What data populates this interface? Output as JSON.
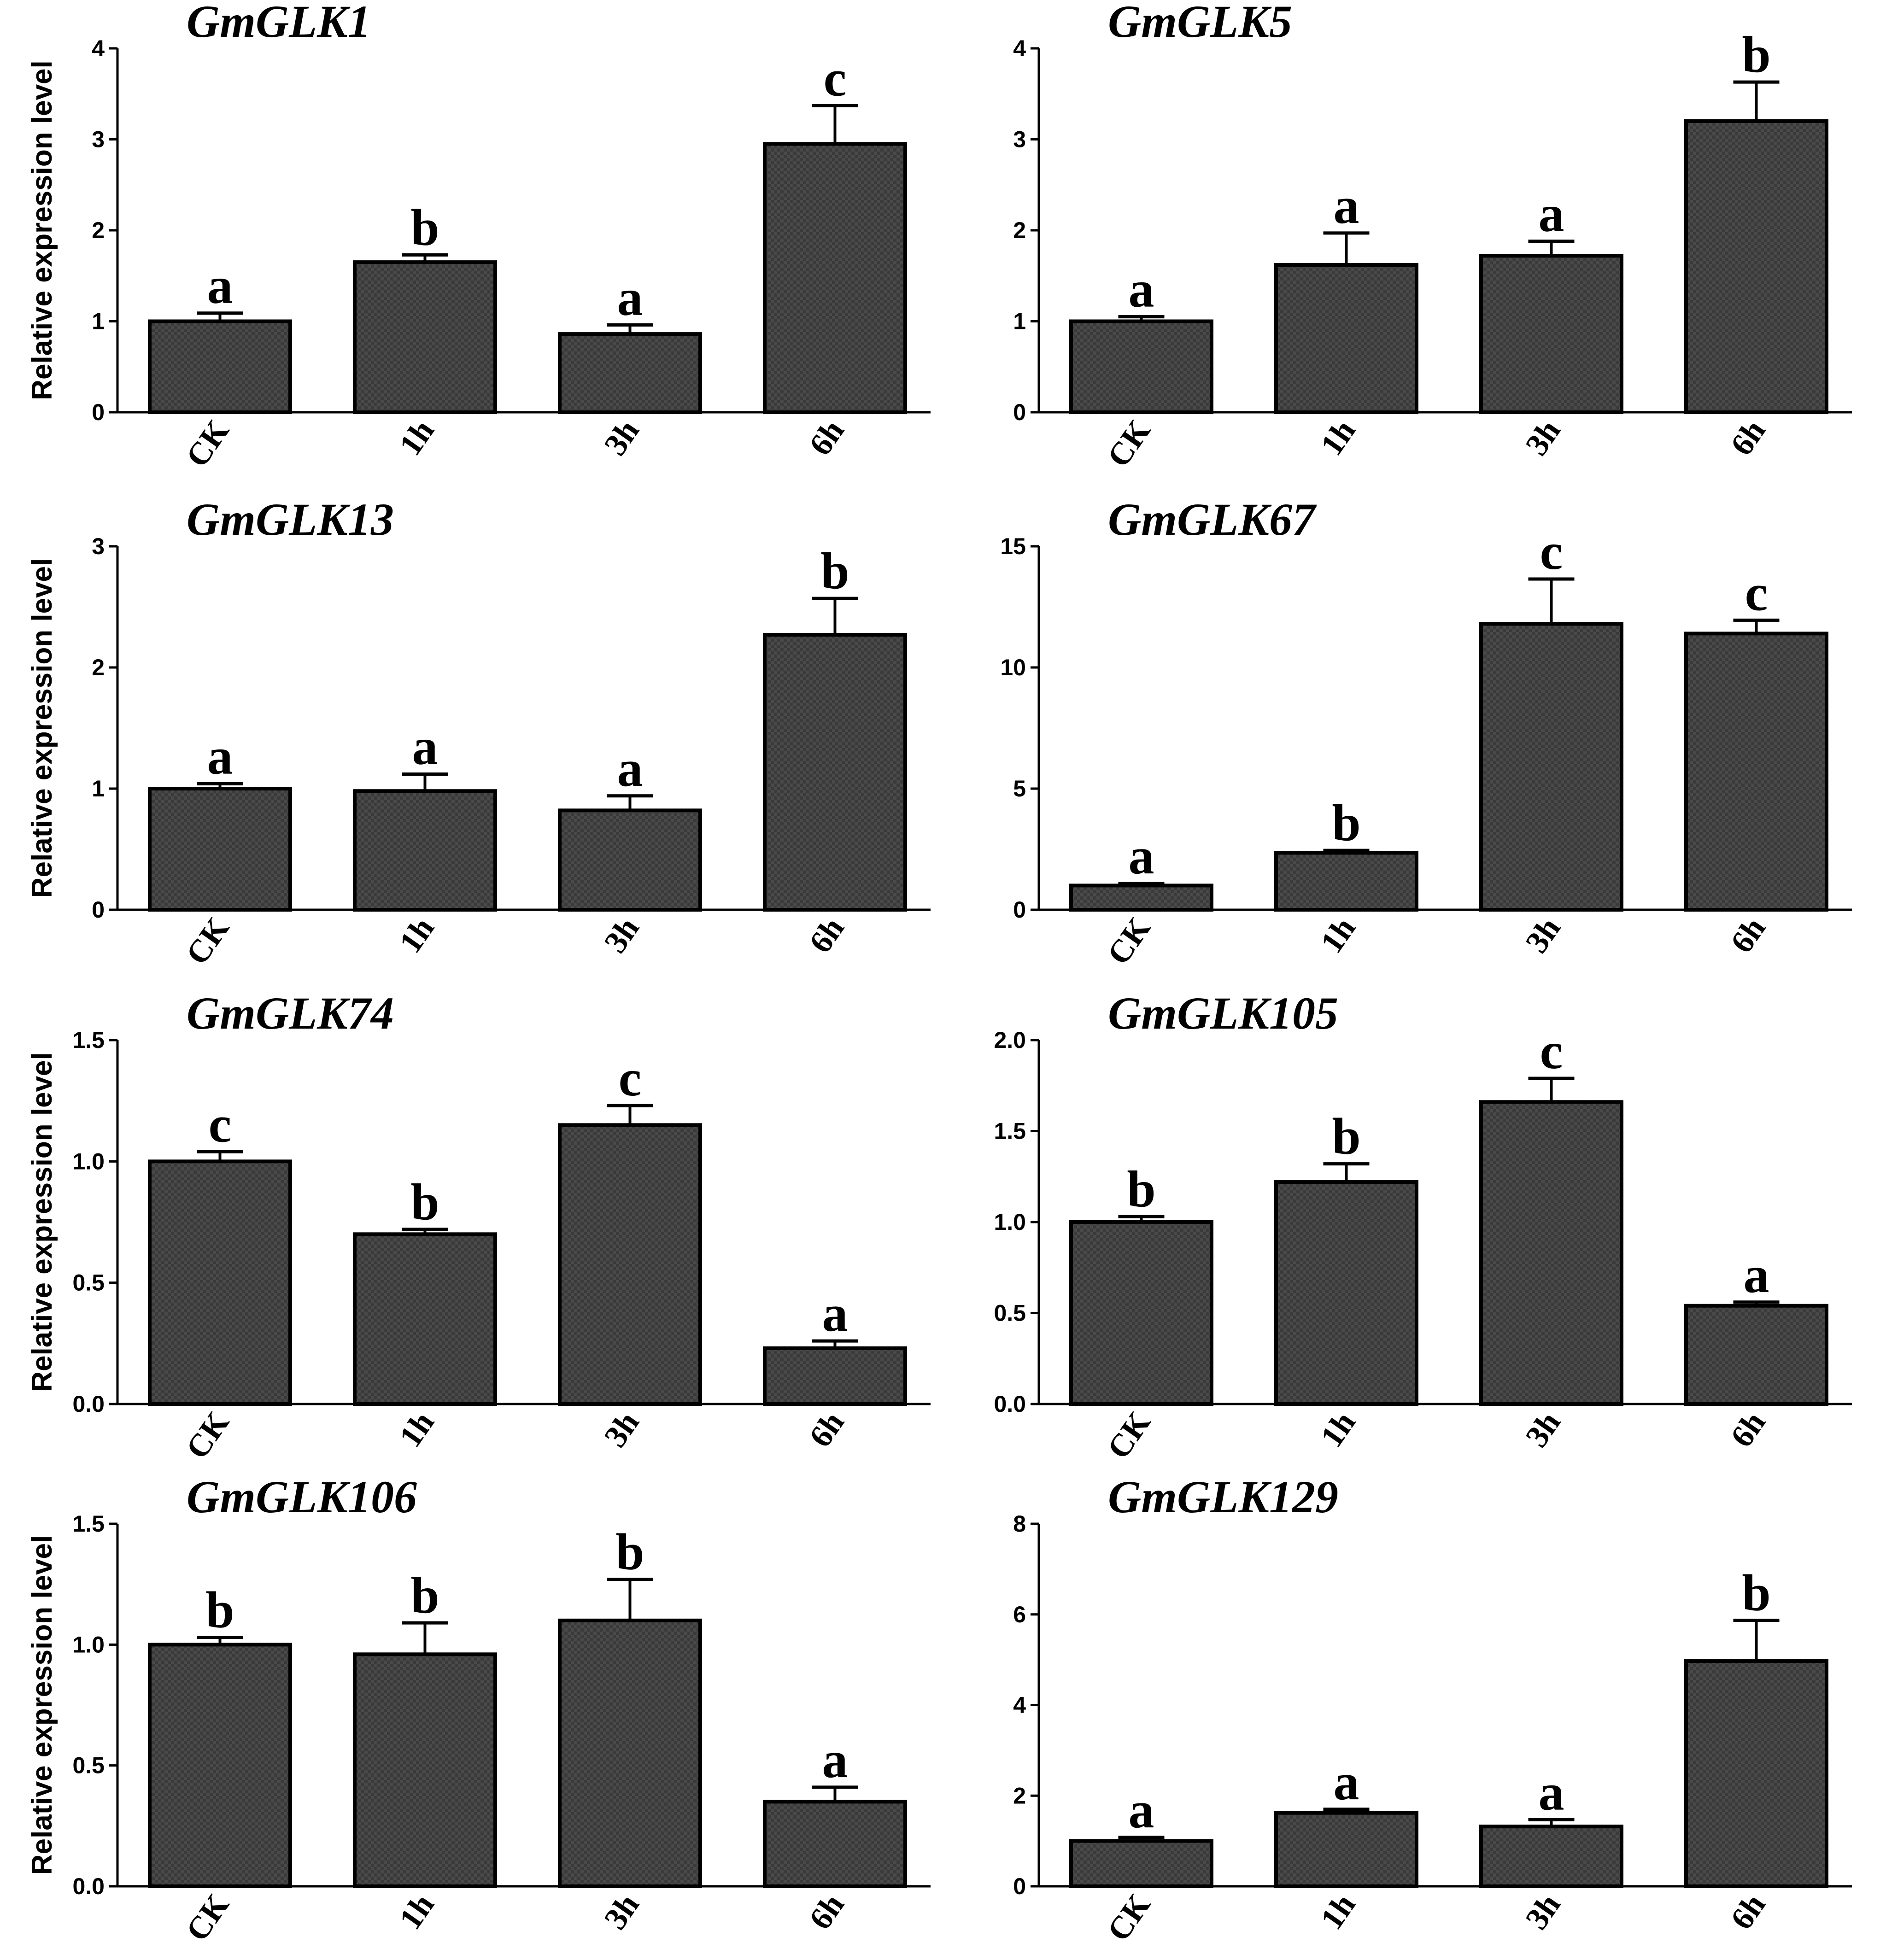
{
  "figure": {
    "colors": {
      "bar_fill": "#3a3a3a",
      "bar_stroke": "#000000",
      "axis": "#000000",
      "background": "#ffffff"
    }
  },
  "chart_data": [
    {
      "type": "bar",
      "title": "GmGLK1",
      "ylabel": "Relative expression level",
      "xlabel": "",
      "categories": [
        "CK",
        "1h",
        "3h",
        "6h"
      ],
      "values": [
        1.0,
        1.65,
        0.86,
        2.95
      ],
      "error_upper": [
        0.09,
        0.08,
        0.1,
        0.42
      ],
      "significance": [
        "a",
        "b",
        "a",
        "c"
      ],
      "ylim": [
        0,
        4
      ],
      "yticks": [
        "0",
        "1",
        "2",
        "3",
        "4"
      ]
    },
    {
      "type": "bar",
      "title": "GmGLK5",
      "ylabel": "",
      "xlabel": "",
      "categories": [
        "CK",
        "1h",
        "3h",
        "6h"
      ],
      "values": [
        1.0,
        1.62,
        1.72,
        3.2
      ],
      "error_upper": [
        0.05,
        0.35,
        0.16,
        0.43
      ],
      "significance": [
        "a",
        "a",
        "a",
        "b"
      ],
      "ylim": [
        0,
        4
      ],
      "yticks": [
        "0",
        "1",
        "2",
        "3",
        "4"
      ]
    },
    {
      "type": "bar",
      "title": "GmGLK13",
      "ylabel": "Relative expression level",
      "xlabel": "",
      "categories": [
        "CK",
        "1h",
        "3h",
        "6h"
      ],
      "values": [
        1.0,
        0.98,
        0.82,
        2.27
      ],
      "error_upper": [
        0.04,
        0.14,
        0.12,
        0.3
      ],
      "significance": [
        "a",
        "a",
        "a",
        "b"
      ],
      "ylim": [
        0,
        3
      ],
      "yticks": [
        "0",
        "1",
        "2",
        "3"
      ]
    },
    {
      "type": "bar",
      "title": "GmGLK67",
      "ylabel": "",
      "xlabel": "",
      "categories": [
        "CK",
        "1h",
        "3h",
        "6h"
      ],
      "values": [
        1.0,
        2.35,
        11.8,
        11.4
      ],
      "error_upper": [
        0.08,
        0.1,
        1.85,
        0.55
      ],
      "significance": [
        "a",
        "b",
        "c",
        "c"
      ],
      "ylim": [
        0,
        15
      ],
      "yticks": [
        "0",
        "5",
        "10",
        "15"
      ]
    },
    {
      "type": "bar",
      "title": "GmGLK74",
      "ylabel": "Relative expression level",
      "xlabel": "",
      "categories": [
        "CK",
        "1h",
        "3h",
        "6h"
      ],
      "values": [
        1.0,
        0.7,
        1.15,
        0.23
      ],
      "error_upper": [
        0.04,
        0.02,
        0.08,
        0.03
      ],
      "significance": [
        "c",
        "b",
        "c",
        "a"
      ],
      "ylim": [
        0,
        1.5
      ],
      "yticks": [
        "0.0",
        "0.5",
        "1.0",
        "1.5"
      ]
    },
    {
      "type": "bar",
      "title": "GmGLK105",
      "ylabel": "",
      "xlabel": "",
      "categories": [
        "CK",
        "1h",
        "3h",
        "6h"
      ],
      "values": [
        1.0,
        1.22,
        1.66,
        0.54
      ],
      "error_upper": [
        0.03,
        0.1,
        0.13,
        0.02
      ],
      "significance": [
        "b",
        "b",
        "c",
        "a"
      ],
      "ylim": [
        0,
        2.0
      ],
      "yticks": [
        "0.0",
        "0.5",
        "1.0",
        "1.5",
        "2.0"
      ]
    },
    {
      "type": "bar",
      "title": "GmGLK106",
      "ylabel": "Relative expression level",
      "xlabel": "",
      "categories": [
        "CK",
        "1h",
        "3h",
        "6h"
      ],
      "values": [
        1.0,
        0.96,
        1.1,
        0.35
      ],
      "error_upper": [
        0.03,
        0.13,
        0.17,
        0.06
      ],
      "significance": [
        "b",
        "b",
        "b",
        "a"
      ],
      "ylim": [
        0,
        1.5
      ],
      "yticks": [
        "0.0",
        "0.5",
        "1.0",
        "1.5"
      ]
    },
    {
      "type": "bar",
      "title": "GmGLK129",
      "ylabel": "",
      "xlabel": "",
      "categories": [
        "CK",
        "1h",
        "3h",
        "6h"
      ],
      "values": [
        1.0,
        1.62,
        1.32,
        4.97
      ],
      "error_upper": [
        0.08,
        0.08,
        0.15,
        0.9
      ],
      "significance": [
        "a",
        "a",
        "a",
        "b"
      ],
      "ylim": [
        0,
        8
      ],
      "yticks": [
        "0",
        "2",
        "4",
        "6",
        "8"
      ]
    }
  ]
}
